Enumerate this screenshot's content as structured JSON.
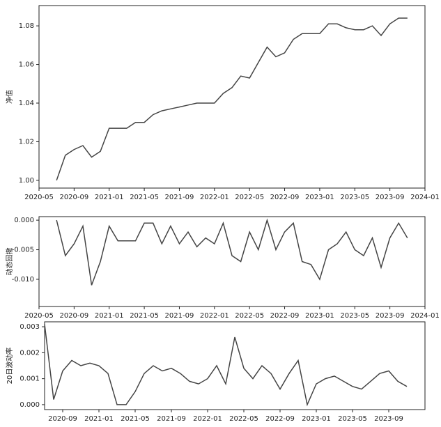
{
  "chart_data": [
    {
      "type": "line",
      "ylabel": "净值",
      "color": "#444444",
      "x": [
        "2020-07",
        "2020-08",
        "2020-09",
        "2020-10",
        "2020-11",
        "2020-12",
        "2021-01",
        "2021-02",
        "2021-03",
        "2021-04",
        "2021-05",
        "2021-06",
        "2021-07",
        "2021-08",
        "2021-09",
        "2021-10",
        "2021-11",
        "2021-12",
        "2022-01",
        "2022-02",
        "2022-03",
        "2022-04",
        "2022-05",
        "2022-06",
        "2022-07",
        "2022-08",
        "2022-09",
        "2022-10",
        "2022-11",
        "2022-12",
        "2023-01",
        "2023-02",
        "2023-03",
        "2023-04",
        "2023-05",
        "2023-06",
        "2023-07",
        "2023-08",
        "2023-09",
        "2023-10",
        "2023-11"
      ],
      "values": [
        1.0,
        1.013,
        1.016,
        1.018,
        1.012,
        1.015,
        1.027,
        1.027,
        1.027,
        1.03,
        1.03,
        1.034,
        1.036,
        1.037,
        1.038,
        1.039,
        1.04,
        1.04,
        1.04,
        1.045,
        1.048,
        1.054,
        1.053,
        1.061,
        1.069,
        1.064,
        1.066,
        1.073,
        1.076,
        1.076,
        1.076,
        1.081,
        1.081,
        1.079,
        1.078,
        1.078,
        1.08,
        1.075,
        1.081,
        1.084,
        1.084
      ],
      "xlim": [
        "2020-05",
        "2024-01"
      ],
      "xticks": [
        "2020-05",
        "2020-09",
        "2021-01",
        "2021-05",
        "2021-09",
        "2022-01",
        "2022-05",
        "2022-09",
        "2023-01",
        "2023-05",
        "2023-09",
        "2024-01"
      ],
      "ylim": [
        0.996,
        1.0905
      ],
      "yticks": [
        {
          "value": 1,
          "label": "1.00"
        },
        1.02,
        1.04,
        1.06,
        1.08
      ]
    },
    {
      "type": "line",
      "ylabel": "动态回撤",
      "color": "#444444",
      "x": [
        "2020-07",
        "2020-08",
        "2020-09",
        "2020-10",
        "2020-11",
        "2020-12",
        "2021-01",
        "2021-02",
        "2021-03",
        "2021-04",
        "2021-05",
        "2021-06",
        "2021-07",
        "2021-08",
        "2021-09",
        "2021-10",
        "2021-11",
        "2021-12",
        "2022-01",
        "2022-02",
        "2022-03",
        "2022-04",
        "2022-05",
        "2022-06",
        "2022-07",
        "2022-08",
        "2022-09",
        "2022-10",
        "2022-11",
        "2022-12",
        "2023-01",
        "2023-02",
        "2023-03",
        "2023-04",
        "2023-05",
        "2023-06",
        "2023-07",
        "2023-08",
        "2023-09",
        "2023-10",
        "2023-11"
      ],
      "values": [
        0,
        -0.006,
        -0.004,
        -0.001,
        -0.011,
        -0.007,
        -0.001,
        -0.0035,
        -0.0035,
        -0.0035,
        -0.0005,
        -0.0005,
        -0.004,
        -0.001,
        -0.004,
        -0.002,
        -0.0045,
        -0.003,
        -0.004,
        -0.0005,
        -0.006,
        -0.007,
        -0.002,
        -0.005,
        0,
        -0.005,
        -0.002,
        -0.0005,
        -0.007,
        -0.0075,
        -0.01,
        -0.005,
        -0.004,
        -0.002,
        -0.005,
        -0.006,
        -0.003,
        -0.008,
        -0.003,
        -0.0005,
        -0.003
      ],
      "xlim": [
        "2020-05",
        "2024-01"
      ],
      "xticks": [
        "2020-05",
        "2020-09",
        "2021-01",
        "2021-05",
        "2021-09",
        "2022-01",
        "2022-05",
        "2022-09",
        "2023-01",
        "2023-05",
        "2023-09",
        "2024-01"
      ],
      "ylim": [
        -0.0146,
        0.0006
      ],
      "yticks": [
        {
          "value": 0,
          "label": "0.000"
        },
        {
          "value": -0.005,
          "label": "-0.005"
        },
        {
          "value": -0.01,
          "label": "-0.010"
        }
      ]
    },
    {
      "type": "line",
      "ylabel": "20日波动率",
      "color": "#444444",
      "x": [
        "2020-07",
        "2020-08",
        "2020-09",
        "2020-10",
        "2020-11",
        "2020-12",
        "2021-01",
        "2021-02",
        "2021-03",
        "2021-04",
        "2021-05",
        "2021-06",
        "2021-07",
        "2021-08",
        "2021-09",
        "2021-10",
        "2021-11",
        "2021-12",
        "2022-01",
        "2022-02",
        "2022-03",
        "2022-04",
        "2022-05",
        "2022-06",
        "2022-07",
        "2022-08",
        "2022-09",
        "2022-10",
        "2022-11",
        "2022-12",
        "2023-01",
        "2023-02",
        "2023-03",
        "2023-04",
        "2023-05",
        "2023-06",
        "2023-07",
        "2023-08",
        "2023-09",
        "2023-10",
        "2023-11"
      ],
      "values": [
        0.0031,
        0.0002,
        0.0013,
        0.0017,
        0.0015,
        0.0016,
        0.0015,
        0.0012,
        0,
        0,
        0.0005,
        0.0012,
        0.0015,
        0.0013,
        0.0014,
        0.0012,
        0.0009,
        0.0008,
        0.001,
        0.0015,
        0.0008,
        0.0026,
        0.0014,
        0.001,
        0.0015,
        0.0012,
        0.0006,
        0.0012,
        0.0017,
        0,
        0.0008,
        0.001,
        0.0011,
        0.0009,
        0.0007,
        0.0006,
        0.0009,
        0.0012,
        0.0013,
        0.0009,
        0.0007
      ],
      "xlim": [
        "2020-07",
        "2024-01"
      ],
      "xticks": [
        "2020-09",
        "2021-01",
        "2021-05",
        "2021-09",
        "2022-01",
        "2022-05",
        "2022-09",
        "2023-01",
        "2023-05",
        "2023-09"
      ],
      "ylim": [
        -0.00019,
        0.00319
      ],
      "yticks": [
        {
          "value": 0,
          "label": "0.000"
        },
        {
          "value": 0.001,
          "label": "0.001"
        },
        {
          "value": 0.002,
          "label": "0.002"
        },
        {
          "value": 0.003,
          "label": "0.003"
        }
      ]
    }
  ]
}
